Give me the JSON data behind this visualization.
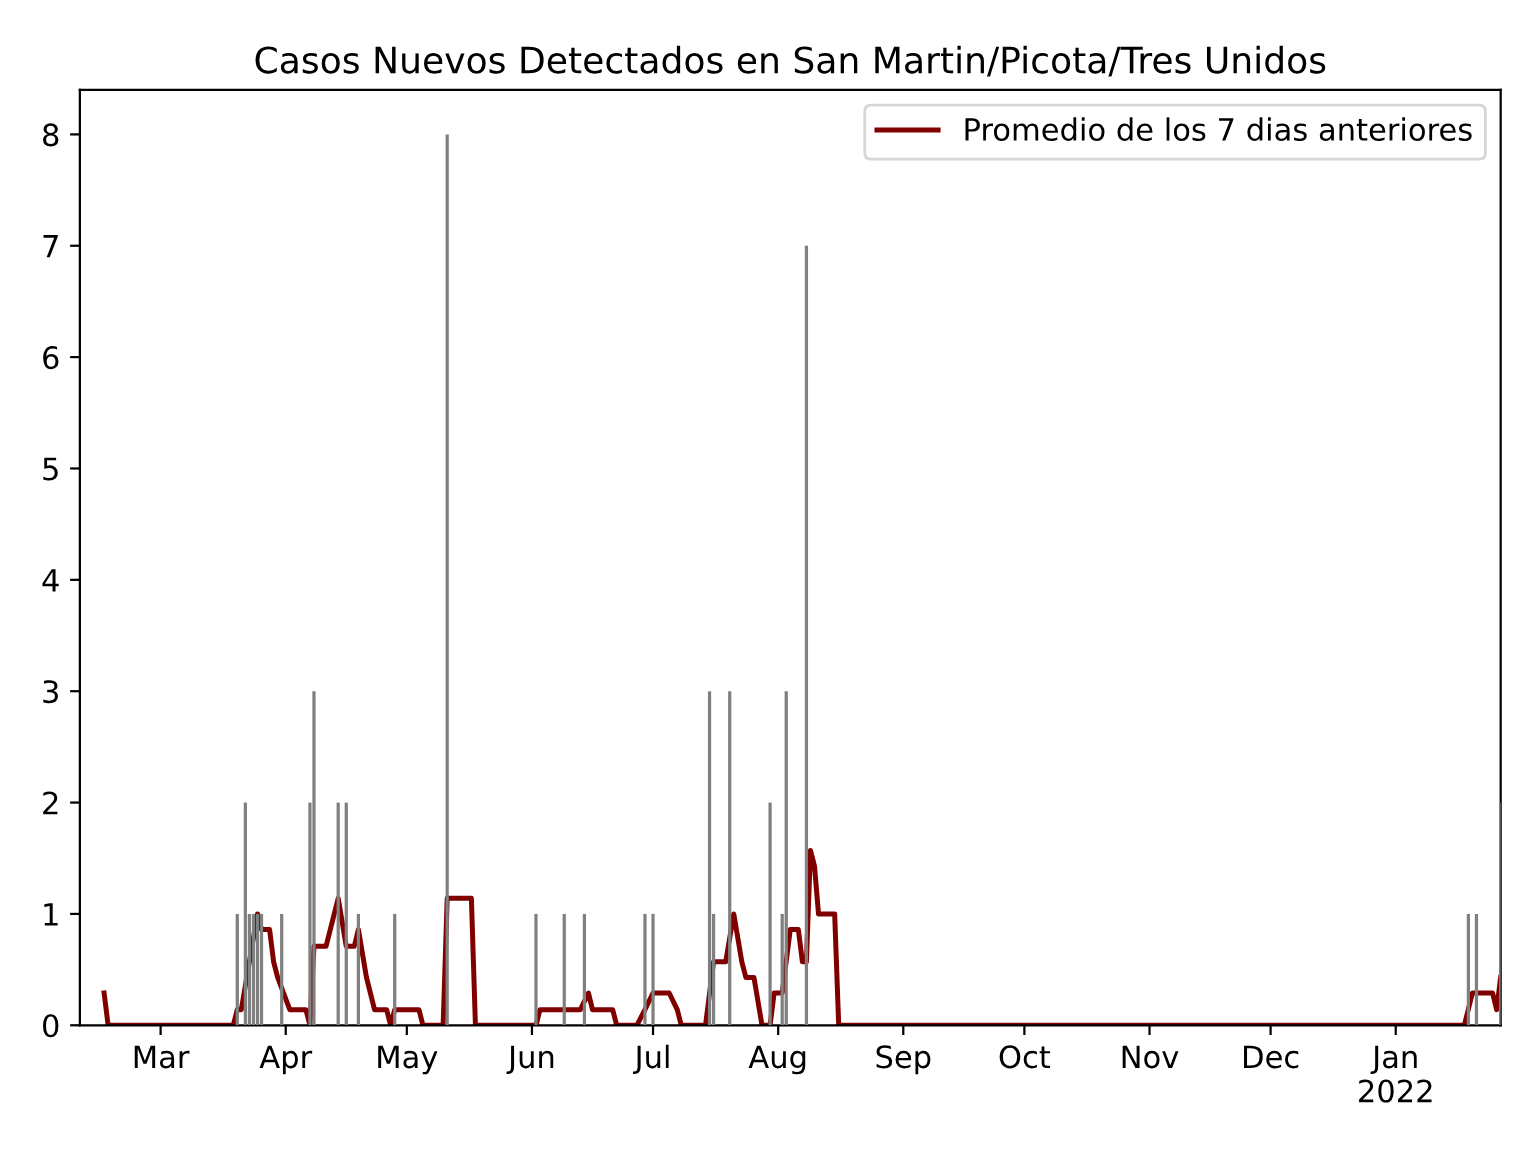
{
  "chart_data": {
    "type": "bar",
    "title": "Casos Nuevos Detectados en San Martin/Picota/Tres Unidos",
    "series": [
      {
        "color": "#808080",
        "x": [
          "2021-03-20",
          "2021-03-22",
          "2021-03-23",
          "2021-03-24",
          "2021-03-25",
          "2021-03-26",
          "2021-03-31",
          "2021-04-07",
          "2021-04-08",
          "2021-04-14",
          "2021-04-16",
          "2021-04-19",
          "2021-04-28",
          "2021-05-11",
          "2021-06-02",
          "2021-06-09",
          "2021-06-14",
          "2021-06-29",
          "2021-07-01",
          "2021-07-15",
          "2021-07-16",
          "2021-07-20",
          "2021-07-30",
          "2021-08-02",
          "2021-08-03",
          "2021-08-08",
          "2022-01-19",
          "2022-01-21",
          "2022-01-27"
        ],
        "values": [
          1,
          2,
          1,
          1,
          1,
          1,
          1,
          2,
          3,
          2,
          2,
          1,
          1,
          8,
          1,
          1,
          1,
          1,
          1,
          3,
          1,
          3,
          2,
          1,
          3,
          7,
          1,
          1,
          2
        ]
      },
      {
        "type": "line",
        "name": "Promedio de los 7 dias anteriores",
        "color": "#800000",
        "x": [
          "2021-02-15",
          "2021-02-16",
          "2021-03-19",
          "2021-03-20",
          "2021-03-21",
          "2021-03-25",
          "2021-03-26",
          "2021-03-28",
          "2021-03-29",
          "2021-03-30",
          "2021-04-02",
          "2021-04-06",
          "2021-04-07",
          "2021-04-08",
          "2021-04-11",
          "2021-04-14",
          "2021-04-16",
          "2021-04-18",
          "2021-04-19",
          "2021-04-21",
          "2021-04-23",
          "2021-04-26",
          "2021-04-27",
          "2021-04-28",
          "2021-05-04",
          "2021-05-05",
          "2021-05-10",
          "2021-05-11",
          "2021-05-17",
          "2021-05-18",
          "2021-06-02",
          "2021-06-03",
          "2021-06-13",
          "2021-06-15",
          "2021-06-16",
          "2021-06-21",
          "2021-06-22",
          "2021-06-27",
          "2021-06-29",
          "2021-07-01",
          "2021-07-05",
          "2021-07-07",
          "2021-07-08",
          "2021-07-14",
          "2021-07-16",
          "2021-07-19",
          "2021-07-21",
          "2021-07-23",
          "2021-07-24",
          "2021-07-26",
          "2021-07-28",
          "2021-07-30",
          "2021-07-31",
          "2021-08-02",
          "2021-08-04",
          "2021-08-06",
          "2021-08-07",
          "2021-08-08",
          "2021-08-09",
          "2021-08-10",
          "2021-08-11",
          "2021-08-15",
          "2021-08-16",
          "2022-01-18",
          "2022-01-20",
          "2022-01-25",
          "2022-01-26",
          "2022-01-27"
        ],
        "values": [
          0.29,
          0,
          0,
          0.14,
          0.14,
          1.0,
          0.86,
          0.86,
          0.57,
          0.43,
          0.14,
          0.14,
          0,
          0.71,
          0.71,
          1.14,
          0.71,
          0.71,
          0.86,
          0.43,
          0.14,
          0.14,
          0,
          0.14,
          0.14,
          0,
          0,
          1.14,
          1.14,
          0,
          0,
          0.14,
          0.14,
          0.29,
          0.14,
          0.14,
          0,
          0,
          0.14,
          0.29,
          0.29,
          0.14,
          0,
          0,
          0.57,
          0.57,
          1.0,
          0.57,
          0.43,
          0.43,
          0,
          0,
          0.29,
          0.29,
          0.86,
          0.86,
          0.57,
          0.57,
          1.57,
          1.43,
          1.0,
          1.0,
          0,
          0,
          0.29,
          0.29,
          0.14,
          0.43
        ]
      }
    ],
    "xlim": [
      "2021-02-09",
      "2022-01-27"
    ],
    "xticks": [
      {
        "value": "2021-03-01",
        "label": "Mar"
      },
      {
        "value": "2021-04-01",
        "label": "Apr"
      },
      {
        "value": "2021-05-01",
        "label": "May"
      },
      {
        "value": "2021-06-01",
        "label": "Jun"
      },
      {
        "value": "2021-07-01",
        "label": "Jul"
      },
      {
        "value": "2021-08-01",
        "label": "Aug"
      },
      {
        "value": "2021-09-01",
        "label": "Sep"
      },
      {
        "value": "2021-10-01",
        "label": "Oct"
      },
      {
        "value": "2021-11-01",
        "label": "Nov"
      },
      {
        "value": "2021-12-01",
        "label": "Dec"
      },
      {
        "value": "2022-01-01",
        "label": "Jan\n2022"
      }
    ],
    "ylim": [
      0,
      8.4
    ],
    "yticks": [
      0,
      1,
      2,
      3,
      4,
      5,
      6,
      7,
      8
    ],
    "grid": false,
    "legend": "top right"
  }
}
